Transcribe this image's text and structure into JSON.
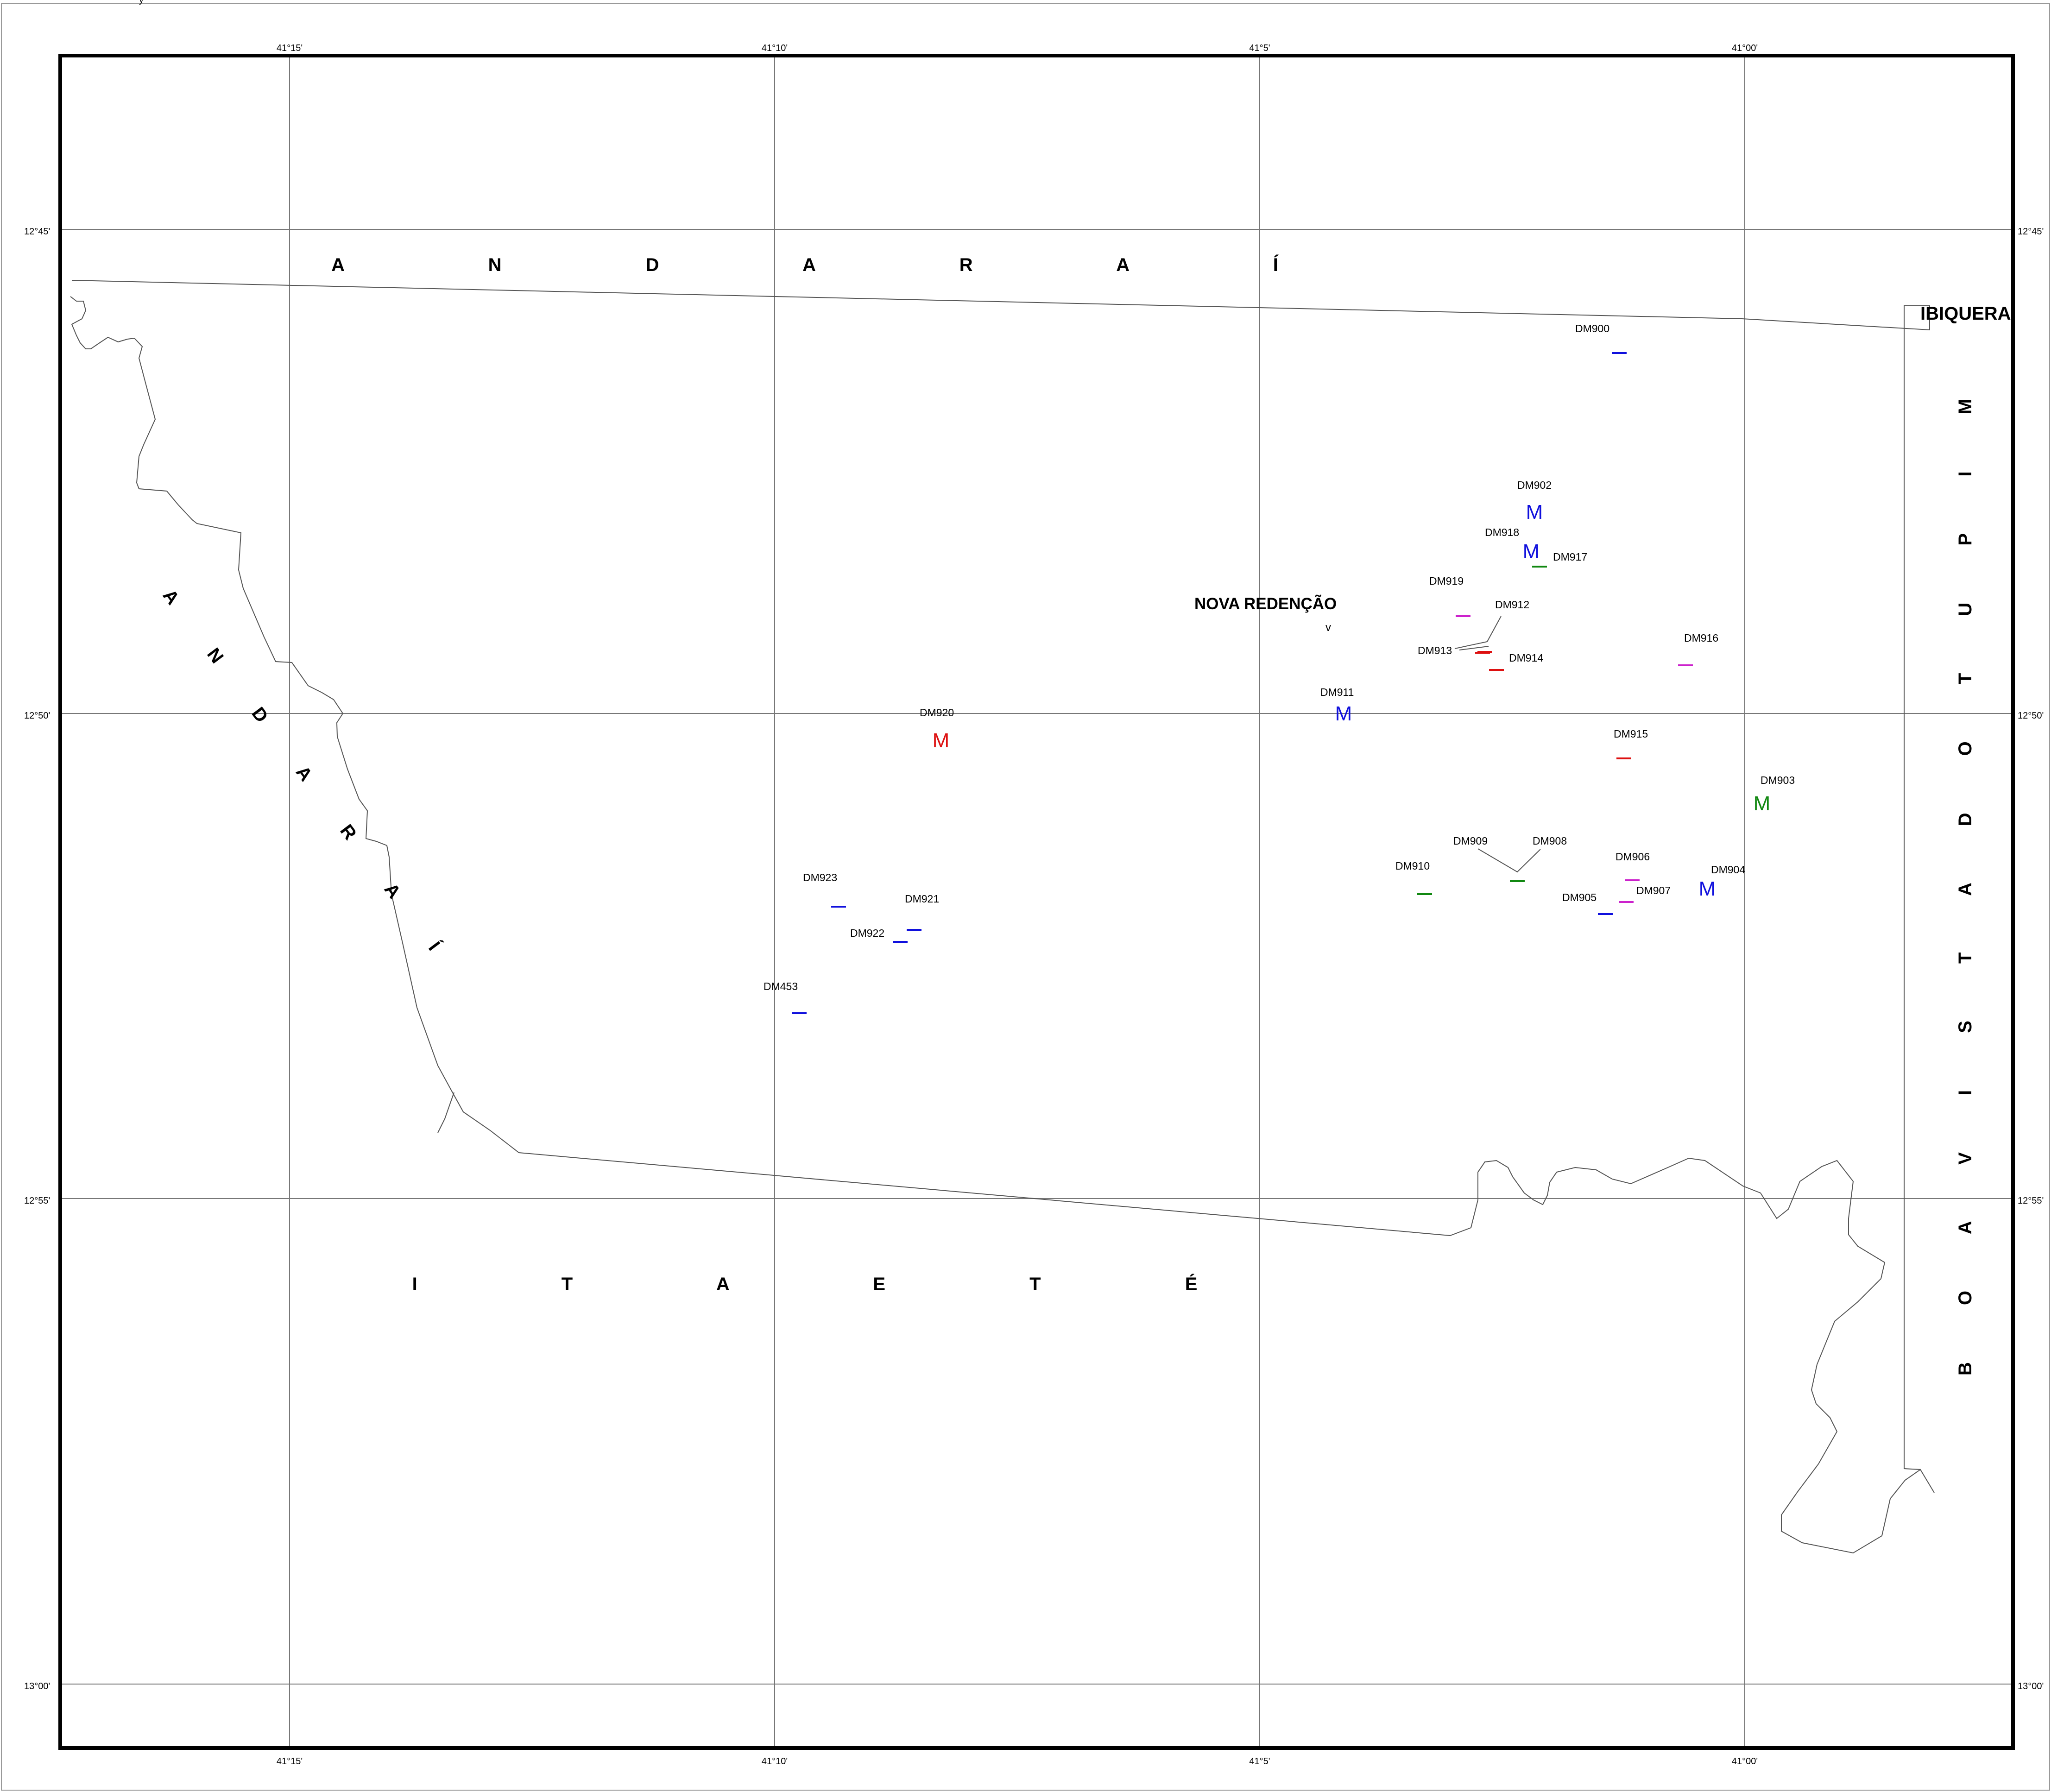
{
  "map": {
    "header": "y",
    "longitude_ticks": [
      "41°15'",
      "41°10'",
      "41°5'",
      "41°00'"
    ],
    "latitude_ticks": [
      "12°45'",
      "12°50'",
      "12°55'",
      "13°00'"
    ],
    "regions": {
      "north": "A N D A R A Í",
      "west": "A N D A R A Í",
      "south": "I T A E T É",
      "east": "B O A V I S T A D O T U P I M",
      "northeast": "IBIQUERA"
    },
    "town": {
      "name": "NOVA REDENÇÃO",
      "symbol": "v"
    },
    "colors": {
      "blue": "#1010dd",
      "red": "#dd1010",
      "green": "#118811",
      "magenta": "#cc22cc"
    },
    "sites": [
      {
        "id": "DM900",
        "symbol": "dash",
        "color": "blue"
      },
      {
        "id": "DM902",
        "symbol": "M",
        "color": "blue"
      },
      {
        "id": "DM918",
        "symbol": "M",
        "color": "blue"
      },
      {
        "id": "DM917",
        "symbol": "dash",
        "color": "green"
      },
      {
        "id": "DM919",
        "symbol": "dash",
        "color": "magenta"
      },
      {
        "id": "DM912",
        "symbol": "dash",
        "color": "red"
      },
      {
        "id": "DM913",
        "symbol": "dash",
        "color": "red"
      },
      {
        "id": "DM914",
        "symbol": "dash",
        "color": "red"
      },
      {
        "id": "DM916",
        "symbol": "dash",
        "color": "magenta"
      },
      {
        "id": "DM911",
        "symbol": "M",
        "color": "blue"
      },
      {
        "id": "DM920",
        "symbol": "M",
        "color": "red"
      },
      {
        "id": "DM915",
        "symbol": "dash",
        "color": "red"
      },
      {
        "id": "DM903",
        "symbol": "M",
        "color": "green"
      },
      {
        "id": "DM909",
        "symbol": "dash",
        "color": "green"
      },
      {
        "id": "DM908",
        "symbol": "dash",
        "color": "green"
      },
      {
        "id": "DM910",
        "symbol": "dash",
        "color": "green"
      },
      {
        "id": "DM906",
        "symbol": "dash",
        "color": "magenta"
      },
      {
        "id": "DM907",
        "symbol": "dash",
        "color": "magenta"
      },
      {
        "id": "DM905",
        "symbol": "dash",
        "color": "blue"
      },
      {
        "id": "DM904",
        "symbol": "M",
        "color": "blue"
      },
      {
        "id": "DM923",
        "symbol": "dash",
        "color": "blue"
      },
      {
        "id": "DM921",
        "symbol": "dash",
        "color": "blue"
      },
      {
        "id": "DM922",
        "symbol": "dash",
        "color": "blue"
      },
      {
        "id": "DM453",
        "symbol": "dash",
        "color": "blue"
      }
    ]
  }
}
